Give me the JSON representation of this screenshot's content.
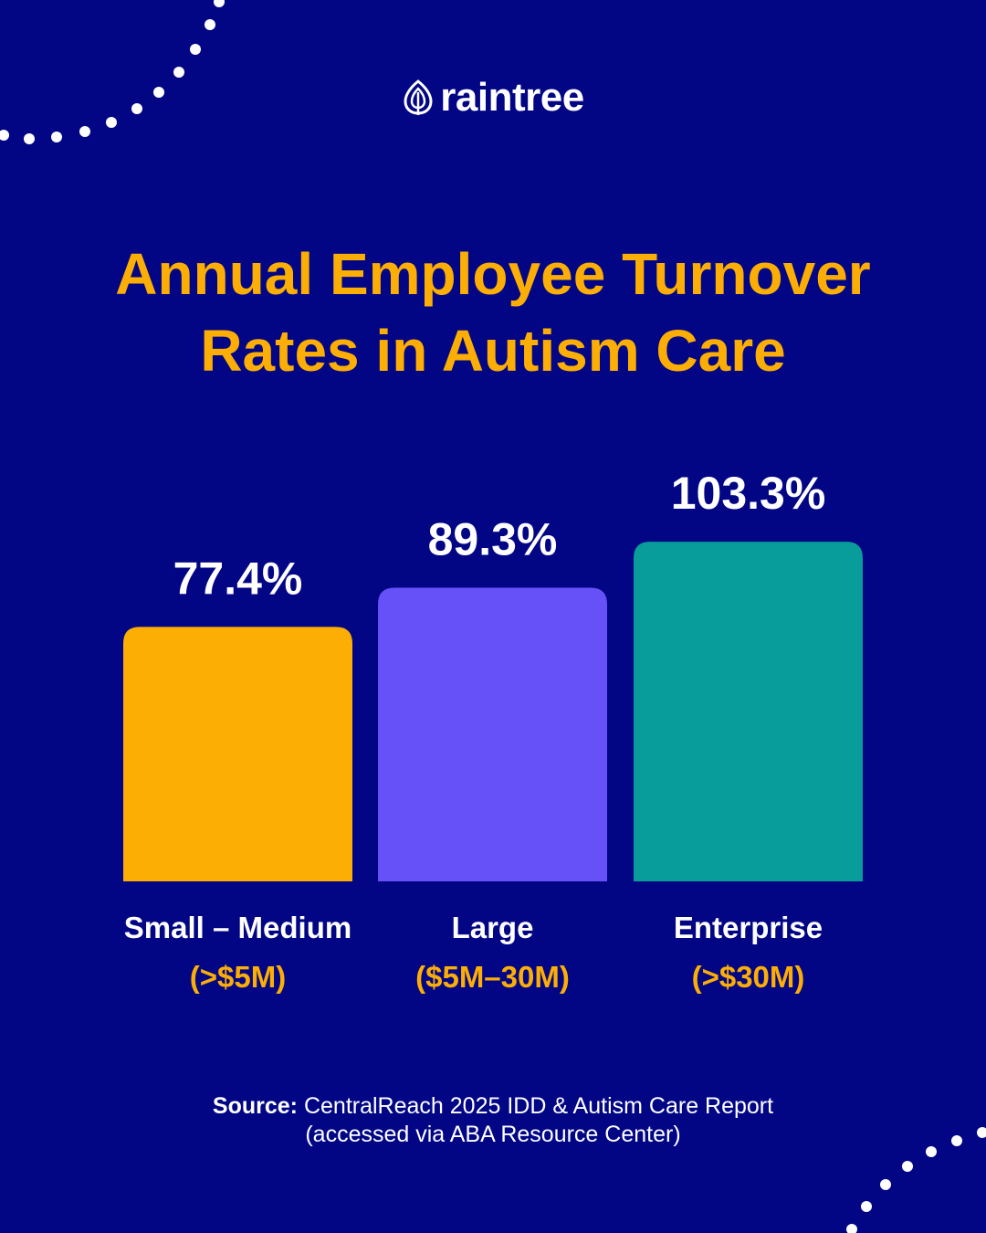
{
  "brand": {
    "name": "raintree",
    "logo_icon": "leaf-icon"
  },
  "colors": {
    "background": "#020685",
    "accent": "#FCAE05",
    "text": "#FFFFFF",
    "bar_small": "#FCAE05",
    "bar_large": "#6650F8",
    "bar_enterprise": "#089C9A"
  },
  "title": {
    "line1": "Annual Employee Turnover",
    "line2": "Rates in Autism Care"
  },
  "chart_data": {
    "type": "bar",
    "title": "Annual Employee Turnover Rates in Autism Care",
    "categories": [
      "Small – Medium",
      "Large",
      "Enterprise"
    ],
    "category_sublabels": [
      "(>$5M)",
      "($5M–30M)",
      "(>$30M)"
    ],
    "values": [
      77.4,
      89.3,
      103.3
    ],
    "value_labels": [
      "77.4%",
      "89.3%",
      "103.3%"
    ],
    "unit": "%",
    "bar_colors": [
      "#FCAE05",
      "#6650F8",
      "#089C9A"
    ],
    "grid": false,
    "axes_visible": false
  },
  "source": {
    "label": "Source:",
    "text": "CentralReach 2025 IDD & Autism Care Report",
    "line2": "(accessed via ABA Resource Center)"
  }
}
